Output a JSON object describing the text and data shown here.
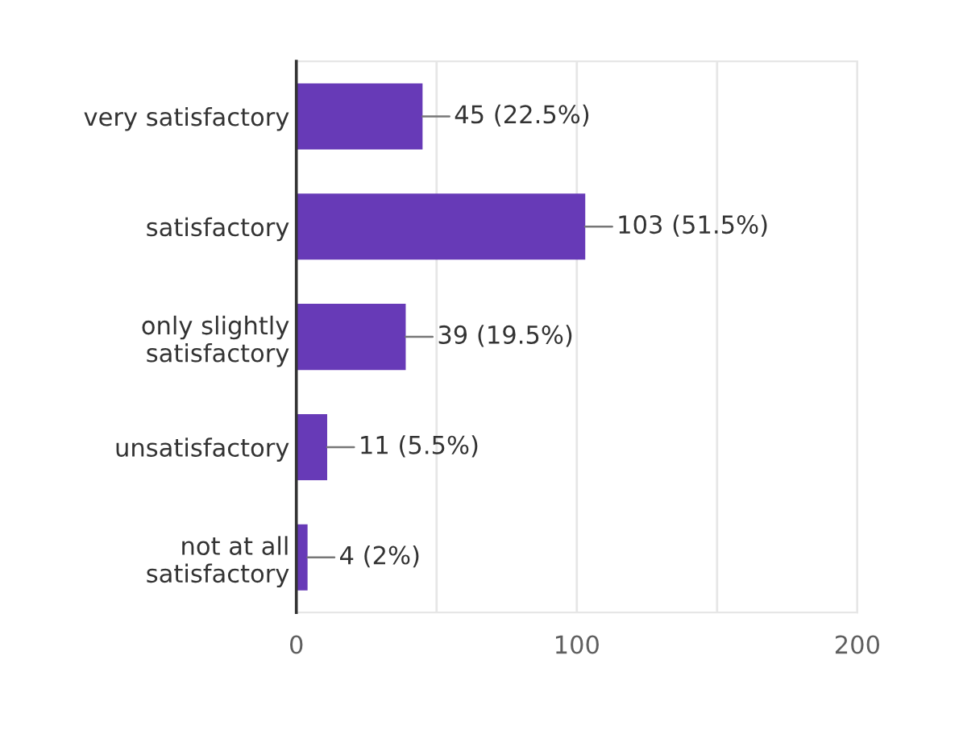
{
  "chart_data": {
    "type": "bar",
    "orientation": "horizontal",
    "categories": [
      "very satisfactory",
      "satisfactory",
      "only slightly\nsatisfactory",
      "unsatisfactory",
      "not at all\nsatisfactory"
    ],
    "values": [
      45,
      103,
      39,
      11,
      4
    ],
    "color": "#673ab7",
    "value_labels": [
      "45 (22.5%)",
      "103 (51.5%)",
      "39 (19.5%)",
      "11 (5.5%)",
      "4 (2%)"
    ],
    "xlim": [
      0,
      200
    ],
    "xticks": [
      0,
      {
        "value": 50,
        "label": null
      },
      100,
      {
        "value": 150,
        "label": null
      },
      200
    ],
    "grid": "x",
    "legend": false
  }
}
